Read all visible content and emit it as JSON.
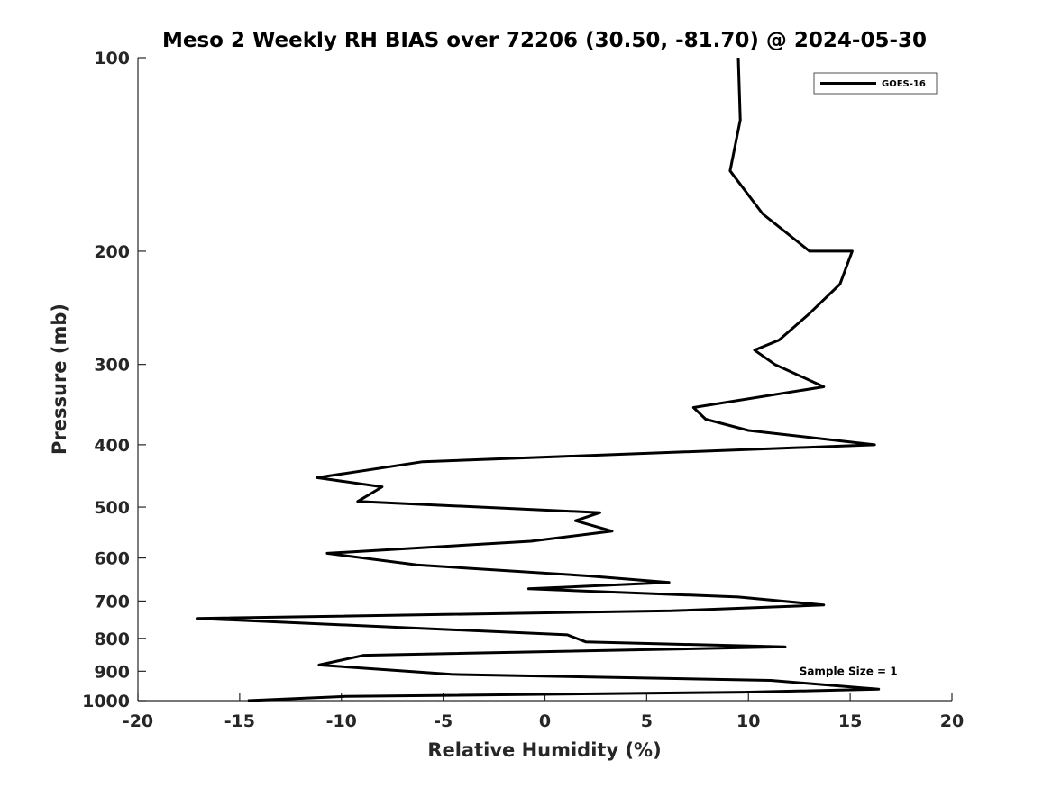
{
  "chart_data": {
    "type": "line",
    "title": "Meso 2 Weekly RH BIAS over 72206 (30.50, -81.70) @ 2024-05-30",
    "xlabel": "Relative Humidity (%)",
    "ylabel": "Pressure (mb)",
    "xlim": [
      -20,
      20
    ],
    "ylim": [
      1000,
      100
    ],
    "y_scale": "log",
    "x_ticks": [
      -20,
      -15,
      -10,
      -5,
      0,
      5,
      10,
      15,
      20
    ],
    "x_tick_labels": [
      "-20",
      "-15",
      "-10",
      "-5",
      "0",
      "5",
      "10",
      "15",
      "20"
    ],
    "y_ticks": [
      100,
      200,
      300,
      400,
      500,
      600,
      700,
      800,
      900,
      1000
    ],
    "y_tick_labels": [
      "100",
      "200",
      "300",
      "400",
      "500",
      "600",
      "700",
      "800",
      "900",
      "1000"
    ],
    "grid": false,
    "legend": {
      "position": "top-right",
      "entries": [
        "GOES-16"
      ]
    },
    "annotations": [
      {
        "text": "Sample Size = 1",
        "x": 12.5,
        "y": 900
      }
    ],
    "series": [
      {
        "name": "GOES-16",
        "color": "#000000",
        "points": [
          [
            9.5,
            100
          ],
          [
            9.6,
            125
          ],
          [
            9.1,
            150
          ],
          [
            10.7,
            175
          ],
          [
            13,
            200
          ],
          [
            15.1,
            200
          ],
          [
            14.5,
            225
          ],
          [
            13,
            250
          ],
          [
            11.5,
            275
          ],
          [
            10.3,
            285
          ],
          [
            11.3,
            300
          ],
          [
            13.7,
            325
          ],
          [
            7.3,
            350
          ],
          [
            7.9,
            365
          ],
          [
            10,
            380
          ],
          [
            16.2,
            400
          ],
          [
            -6,
            425
          ],
          [
            -11.2,
            450
          ],
          [
            -8,
            465
          ],
          [
            -9.2,
            490
          ],
          [
            2.7,
            510
          ],
          [
            1.5,
            525
          ],
          [
            3.3,
            545
          ],
          [
            -0.7,
            565
          ],
          [
            -10.7,
            590
          ],
          [
            -6.3,
            615
          ],
          [
            2.2,
            640
          ],
          [
            6.1,
            655
          ],
          [
            -0.8,
            670
          ],
          [
            9.5,
            690
          ],
          [
            13.7,
            710
          ],
          [
            6.2,
            725
          ],
          [
            -17.1,
            745
          ],
          [
            1.1,
            790
          ],
          [
            2,
            810
          ],
          [
            11.8,
            825
          ],
          [
            -8.9,
            850
          ],
          [
            -11.1,
            880
          ],
          [
            -4.6,
            910
          ],
          [
            11.1,
            930
          ],
          [
            16.4,
            960
          ],
          [
            9.8,
            970
          ],
          [
            -9.8,
            985
          ],
          [
            -14.6,
            1000
          ]
        ]
      }
    ]
  }
}
